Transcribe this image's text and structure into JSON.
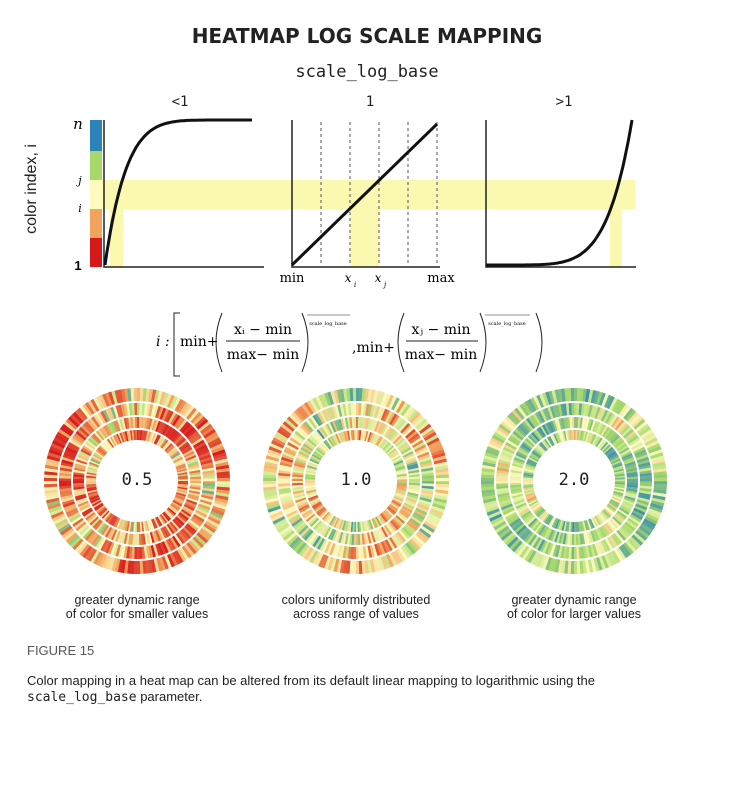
{
  "title": "HEATMAP LOG SCALE MAPPING",
  "parameter": "scale_log_base",
  "y_axis_label": "color index, i",
  "y_ticks": {
    "n": "n",
    "j": "j",
    "i": "i",
    "one": "1"
  },
  "panels": [
    {
      "label": "<1",
      "base": 0.5
    },
    {
      "label": "1",
      "base": 1.0
    },
    {
      "label": ">1",
      "base": 2.0
    }
  ],
  "x_ticks": {
    "min": "min",
    "xi": "x",
    "xi_sub": "i",
    "xj": "x",
    "xj_sub": "j",
    "max": "max"
  },
  "formula": {
    "lhs": "i :",
    "min_plus": "min+",
    "numerator_i": "xᵢ − min",
    "numerator_j": "xⱼ − min",
    "denominator": "max− min",
    "exponent": "scale_log_base",
    "separator": ",min+"
  },
  "rings": [
    {
      "value": "0.5",
      "caption_line1": "greater dynamic range",
      "caption_line2": "of color for smaller values"
    },
    {
      "value": "1.0",
      "caption_line1": "colors uniformly distributed",
      "caption_line2": "across range of values"
    },
    {
      "value": "2.0",
      "caption_line1": "greater dynamic range",
      "caption_line2": "of color for larger values"
    }
  ],
  "color_scale": [
    "#d7191c",
    "#f2a35c",
    "#fdfbbf",
    "#a6d96a",
    "#2b83ba"
  ],
  "highlight_color": "#fbf8b0",
  "figure_label": "FIGURE 15",
  "figure_caption_part1": "Color mapping in a heat map can be altered from its default linear mapping to logarithmic using the",
  "figure_caption_code": "scale_log_base",
  "figure_caption_part2": " parameter."
}
